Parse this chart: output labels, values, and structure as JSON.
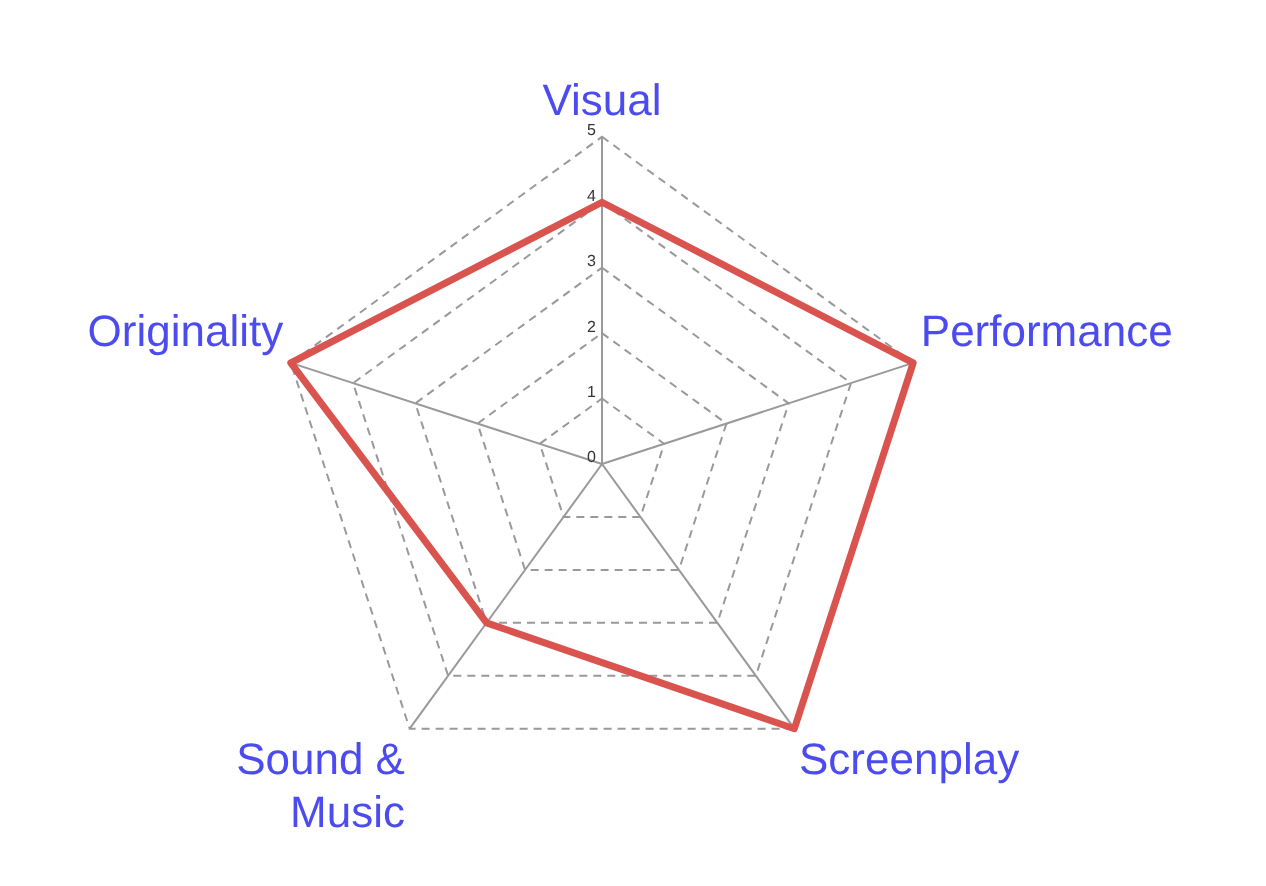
{
  "chart_data": {
    "type": "radar",
    "categories": [
      "Visual",
      "Performance",
      "Screenplay",
      "Sound & Music",
      "Originality"
    ],
    "series": [
      {
        "color": "#d9534f",
        "values": [
          4,
          5,
          5,
          3,
          5
        ]
      }
    ],
    "ylim": [
      0,
      5
    ],
    "yticks": [
      0,
      1,
      2,
      3,
      4,
      5
    ],
    "grid": true,
    "legend": false,
    "marker": "none",
    "line_style": "solid"
  }
}
